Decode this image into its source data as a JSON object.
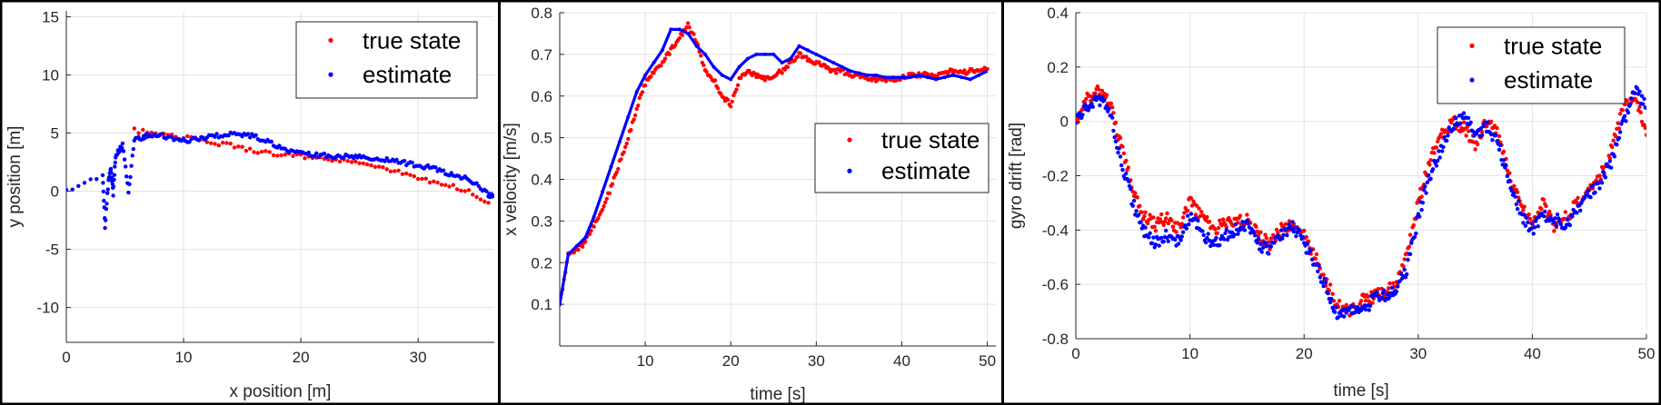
{
  "chart_data": [
    {
      "type": "scatter",
      "xlabel": "x position [m]",
      "ylabel": "y position [m]",
      "xlim": [
        0,
        36.5
      ],
      "ylim": [
        -13,
        15.5
      ],
      "xticks": [
        0,
        10,
        20,
        30
      ],
      "yticks": [
        -10,
        -5,
        0,
        5,
        10,
        15
      ],
      "grid": true,
      "legend": {
        "position": "top-right",
        "entries": [
          "true state",
          "estimate"
        ]
      },
      "series": [
        {
          "name": "true state",
          "color": "#ff0000",
          "style": "dense-points",
          "points": [
            [
              5.8,
              5.2
            ],
            [
              8,
              4.9
            ],
            [
              10,
              4.6
            ],
            [
              12,
              4.3
            ],
            [
              14,
              3.9
            ],
            [
              16,
              3.5
            ],
            [
              18,
              3.2
            ],
            [
              20,
              3.0
            ],
            [
              22,
              2.8
            ],
            [
              24,
              2.5
            ],
            [
              26,
              2.2
            ],
            [
              28,
              1.8
            ],
            [
              30,
              1.2
            ],
            [
              32,
              0.6
            ],
            [
              34,
              0.1
            ],
            [
              36,
              -1.0
            ]
          ]
        },
        {
          "name": "estimate",
          "color": "#0000ff",
          "style": "dense-points",
          "points": [
            [
              0,
              0
            ],
            [
              3.1,
              1.4
            ],
            [
              3.3,
              -3.0
            ],
            [
              3.6,
              1.0
            ],
            [
              3.8,
              2.0
            ],
            [
              4.0,
              -0.2
            ],
            [
              4.2,
              3.0
            ],
            [
              4.5,
              3.5
            ],
            [
              4.8,
              4.0
            ],
            [
              5.3,
              -0.1
            ],
            [
              5.8,
              4.4
            ],
            [
              6.5,
              4.6
            ],
            [
              7,
              4.9
            ],
            [
              8,
              4.8
            ],
            [
              9,
              4.6
            ],
            [
              10,
              4.4
            ],
            [
              11,
              4.4
            ],
            [
              12,
              4.6
            ],
            [
              13,
              4.8
            ],
            [
              14,
              4.9
            ],
            [
              15,
              4.9
            ],
            [
              16,
              4.7
            ],
            [
              17,
              4.3
            ],
            [
              18,
              3.9
            ],
            [
              19,
              3.5
            ],
            [
              20,
              3.2
            ],
            [
              21,
              3.1
            ],
            [
              22,
              3.1
            ],
            [
              23,
              3.0
            ],
            [
              24,
              3.0
            ],
            [
              25,
              2.9
            ],
            [
              26,
              2.8
            ],
            [
              27,
              2.7
            ],
            [
              28,
              2.6
            ],
            [
              29,
              2.4
            ],
            [
              30,
              2.2
            ],
            [
              31,
              2.0
            ],
            [
              32,
              1.7
            ],
            [
              33,
              1.4
            ],
            [
              34,
              1.1
            ],
            [
              35,
              0.6
            ],
            [
              36,
              -0.3
            ],
            [
              36.4,
              -0.4
            ]
          ]
        }
      ]
    },
    {
      "type": "line",
      "xlabel": "time [s]",
      "ylabel": "x velocity  [m/s]",
      "xlim": [
        0,
        51
      ],
      "ylim": [
        0,
        0.8
      ],
      "xticks": [
        10,
        20,
        30,
        40,
        50
      ],
      "yticks": [
        0.1,
        0.2,
        0.3,
        0.4,
        0.5,
        0.6,
        0.7,
        0.8
      ],
      "grid": true,
      "legend": {
        "position": "right",
        "entries": [
          "true state",
          "estimate"
        ]
      },
      "series": [
        {
          "name": "true state",
          "color": "#ff0000",
          "style": "dense-points",
          "points": [
            [
              0,
              0.1
            ],
            [
              1,
              0.22
            ],
            [
              2,
              0.23
            ],
            [
              3,
              0.25
            ],
            [
              4,
              0.29
            ],
            [
              5,
              0.33
            ],
            [
              6,
              0.38
            ],
            [
              7,
              0.44
            ],
            [
              8,
              0.5
            ],
            [
              9,
              0.57
            ],
            [
              10,
              0.63
            ],
            [
              11,
              0.66
            ],
            [
              12,
              0.68
            ],
            [
              13,
              0.71
            ],
            [
              14,
              0.74
            ],
            [
              15,
              0.77
            ],
            [
              16,
              0.73
            ],
            [
              17,
              0.66
            ],
            [
              18,
              0.64
            ],
            [
              19,
              0.6
            ],
            [
              20,
              0.58
            ],
            [
              21,
              0.64
            ],
            [
              22,
              0.66
            ],
            [
              23,
              0.65
            ],
            [
              24,
              0.64
            ],
            [
              25,
              0.65
            ],
            [
              26,
              0.66
            ],
            [
              27,
              0.68
            ],
            [
              28,
              0.7
            ],
            [
              29,
              0.69
            ],
            [
              30,
              0.68
            ],
            [
              31,
              0.67
            ],
            [
              32,
              0.66
            ],
            [
              33,
              0.66
            ],
            [
              34,
              0.65
            ],
            [
              35,
              0.65
            ],
            [
              36,
              0.64
            ],
            [
              37,
              0.64
            ],
            [
              38,
              0.64
            ],
            [
              39,
              0.64
            ],
            [
              40,
              0.645
            ],
            [
              41,
              0.65
            ],
            [
              42,
              0.65
            ],
            [
              43,
              0.655
            ],
            [
              44,
              0.65
            ],
            [
              45,
              0.66
            ],
            [
              46,
              0.66
            ],
            [
              47,
              0.655
            ],
            [
              48,
              0.66
            ],
            [
              49,
              0.66
            ],
            [
              50,
              0.665
            ]
          ]
        },
        {
          "name": "estimate",
          "color": "#0000ff",
          "style": "solid-line",
          "points": [
            [
              0,
              0.1
            ],
            [
              1,
              0.22
            ],
            [
              2,
              0.24
            ],
            [
              3,
              0.26
            ],
            [
              4,
              0.31
            ],
            [
              5,
              0.37
            ],
            [
              6,
              0.43
            ],
            [
              7,
              0.49
            ],
            [
              8,
              0.55
            ],
            [
              9,
              0.61
            ],
            [
              10,
              0.65
            ],
            [
              11,
              0.68
            ],
            [
              12,
              0.71
            ],
            [
              13,
              0.76
            ],
            [
              14,
              0.76
            ],
            [
              15,
              0.75
            ],
            [
              16,
              0.72
            ],
            [
              17,
              0.7
            ],
            [
              18,
              0.67
            ],
            [
              19,
              0.65
            ],
            [
              20,
              0.64
            ],
            [
              21,
              0.67
            ],
            [
              22,
              0.69
            ],
            [
              23,
              0.7
            ],
            [
              24,
              0.7
            ],
            [
              25,
              0.7
            ],
            [
              26,
              0.68
            ],
            [
              27,
              0.69
            ],
            [
              28,
              0.72
            ],
            [
              29,
              0.71
            ],
            [
              30,
              0.7
            ],
            [
              31,
              0.69
            ],
            [
              32,
              0.68
            ],
            [
              33,
              0.67
            ],
            [
              34,
              0.66
            ],
            [
              35,
              0.655
            ],
            [
              36,
              0.65
            ],
            [
              37,
              0.65
            ],
            [
              38,
              0.645
            ],
            [
              39,
              0.645
            ],
            [
              40,
              0.645
            ],
            [
              41,
              0.645
            ],
            [
              42,
              0.65
            ],
            [
              43,
              0.645
            ],
            [
              44,
              0.64
            ],
            [
              45,
              0.645
            ],
            [
              46,
              0.65
            ],
            [
              47,
              0.645
            ],
            [
              48,
              0.64
            ],
            [
              49,
              0.65
            ],
            [
              50,
              0.66
            ]
          ]
        }
      ]
    },
    {
      "type": "scatter",
      "xlabel": "time [s]",
      "ylabel": "gyro drift [rad]",
      "xlim": [
        0,
        50
      ],
      "ylim": [
        -0.8,
        0.4
      ],
      "xticks": [
        0,
        10,
        20,
        30,
        40,
        50
      ],
      "yticks": [
        -0.8,
        -0.6,
        -0.4,
        -0.2,
        0,
        0.2,
        0.4
      ],
      "grid": true,
      "legend": {
        "position": "top-right",
        "entries": [
          "true state",
          "estimate"
        ]
      },
      "series": [
        {
          "name": "true state",
          "color": "#ff0000",
          "style": "scattered-points",
          "points": [
            [
              0,
              0
            ],
            [
              1,
              0.08
            ],
            [
              2,
              0.12
            ],
            [
              3,
              0.06
            ],
            [
              4,
              -0.1
            ],
            [
              5,
              -0.25
            ],
            [
              6,
              -0.35
            ],
            [
              7,
              -0.38
            ],
            [
              8,
              -0.35
            ],
            [
              9,
              -0.4
            ],
            [
              10,
              -0.3
            ],
            [
              11,
              -0.35
            ],
            [
              12,
              -0.4
            ],
            [
              13,
              -0.38
            ],
            [
              14,
              -0.37
            ],
            [
              15,
              -0.36
            ],
            [
              16,
              -0.42
            ],
            [
              17,
              -0.45
            ],
            [
              18,
              -0.4
            ],
            [
              19,
              -0.37
            ],
            [
              20,
              -0.42
            ],
            [
              21,
              -0.5
            ],
            [
              22,
              -0.6
            ],
            [
              23,
              -0.68
            ],
            [
              24,
              -0.7
            ],
            [
              25,
              -0.66
            ],
            [
              26,
              -0.65
            ],
            [
              27,
              -0.63
            ],
            [
              28,
              -0.6
            ],
            [
              29,
              -0.5
            ],
            [
              30,
              -0.3
            ],
            [
              31,
              -0.15
            ],
            [
              32,
              -0.05
            ],
            [
              33,
              0
            ],
            [
              34,
              -0.02
            ],
            [
              35,
              -0.08
            ],
            [
              36,
              0
            ],
            [
              37,
              -0.05
            ],
            [
              38,
              -0.2
            ],
            [
              39,
              -0.3
            ],
            [
              40,
              -0.38
            ],
            [
              41,
              -0.3
            ],
            [
              42,
              -0.4
            ],
            [
              43,
              -0.35
            ],
            [
              44,
              -0.3
            ],
            [
              45,
              -0.25
            ],
            [
              46,
              -0.2
            ],
            [
              47,
              -0.1
            ],
            [
              48,
              0.05
            ],
            [
              49,
              0.1
            ],
            [
              50,
              -0.05
            ]
          ]
        },
        {
          "name": "estimate",
          "color": "#0000ff",
          "style": "scattered-points",
          "points": [
            [
              0,
              0
            ],
            [
              1,
              0.05
            ],
            [
              2,
              0.08
            ],
            [
              3,
              0.04
            ],
            [
              4,
              -0.15
            ],
            [
              5,
              -0.3
            ],
            [
              6,
              -0.4
            ],
            [
              7,
              -0.45
            ],
            [
              8,
              -0.42
            ],
            [
              9,
              -0.44
            ],
            [
              10,
              -0.35
            ],
            [
              11,
              -0.4
            ],
            [
              12,
              -0.46
            ],
            [
              13,
              -0.42
            ],
            [
              14,
              -0.4
            ],
            [
              15,
              -0.38
            ],
            [
              16,
              -0.45
            ],
            [
              17,
              -0.48
            ],
            [
              18,
              -0.42
            ],
            [
              19,
              -0.38
            ],
            [
              20,
              -0.45
            ],
            [
              21,
              -0.52
            ],
            [
              22,
              -0.62
            ],
            [
              23,
              -0.72
            ],
            [
              24,
              -0.68
            ],
            [
              25,
              -0.7
            ],
            [
              26,
              -0.66
            ],
            [
              27,
              -0.64
            ],
            [
              28,
              -0.62
            ],
            [
              29,
              -0.55
            ],
            [
              30,
              -0.35
            ],
            [
              31,
              -0.2
            ],
            [
              32,
              -0.1
            ],
            [
              33,
              -0.02
            ],
            [
              34,
              0.02
            ],
            [
              35,
              -0.04
            ],
            [
              36,
              -0.02
            ],
            [
              37,
              -0.08
            ],
            [
              38,
              -0.22
            ],
            [
              39,
              -0.34
            ],
            [
              40,
              -0.4
            ],
            [
              41,
              -0.34
            ],
            [
              42,
              -0.36
            ],
            [
              43,
              -0.38
            ],
            [
              44,
              -0.32
            ],
            [
              45,
              -0.27
            ],
            [
              46,
              -0.22
            ],
            [
              47,
              -0.14
            ],
            [
              48,
              0.0
            ],
            [
              49,
              0.12
            ],
            [
              50,
              0.05
            ]
          ]
        }
      ]
    }
  ]
}
